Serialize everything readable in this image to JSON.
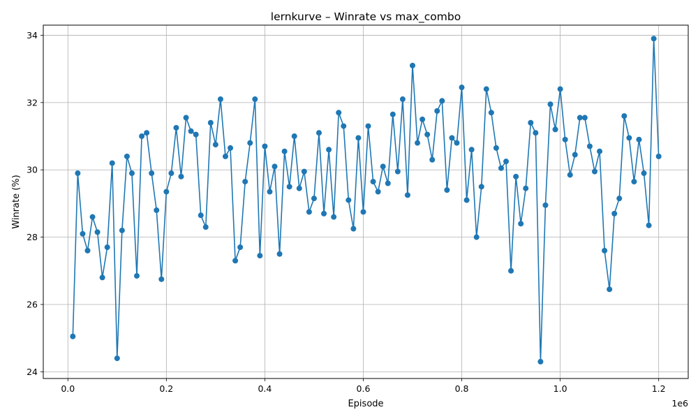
{
  "chart_data": {
    "type": "line",
    "title": "lernkurve – Winrate vs max_combo",
    "xlabel": "Episode",
    "ylabel": "Winrate (%)",
    "x_offset_label": "1e6",
    "xlim": [
      -0.05,
      1.26
    ],
    "ylim": [
      23.8,
      34.3
    ],
    "x_ticks": [
      0,
      0.2,
      0.4,
      0.6,
      0.8,
      1.0,
      1.2
    ],
    "x_tick_labels": [
      "0.0",
      "0.2",
      "0.4",
      "0.6",
      "0.8",
      "1.0",
      "1.2"
    ],
    "y_ticks": [
      24,
      26,
      28,
      30,
      32,
      34
    ],
    "y_tick_labels": [
      "24",
      "26",
      "28",
      "30",
      "32",
      "34"
    ],
    "grid": true,
    "color": "#1f77b4",
    "marker": "circle",
    "series": [
      {
        "x": [
          0.01,
          0.02,
          0.03,
          0.04,
          0.05,
          0.06,
          0.07,
          0.08,
          0.09,
          0.1,
          0.11,
          0.12,
          0.13,
          0.14,
          0.15,
          0.16,
          0.17,
          0.18,
          0.19,
          0.2,
          0.21,
          0.22,
          0.23,
          0.24,
          0.25,
          0.26,
          0.27,
          0.28,
          0.29,
          0.3,
          0.31,
          0.32,
          0.33,
          0.34,
          0.35,
          0.36,
          0.37,
          0.38,
          0.39,
          0.4,
          0.41,
          0.42,
          0.43,
          0.44,
          0.45,
          0.46,
          0.47,
          0.48,
          0.49,
          0.5,
          0.51,
          0.52,
          0.53,
          0.54,
          0.55,
          0.56,
          0.57,
          0.58,
          0.59,
          0.6,
          0.61,
          0.62,
          0.63,
          0.64,
          0.65,
          0.66,
          0.67,
          0.68,
          0.69,
          0.7,
          0.71,
          0.72,
          0.73,
          0.74,
          0.75,
          0.76,
          0.77,
          0.78,
          0.79,
          0.8,
          0.81,
          0.82,
          0.83,
          0.84,
          0.85,
          0.86,
          0.87,
          0.88,
          0.89,
          0.9,
          0.91,
          0.92,
          0.93,
          0.94,
          0.95,
          0.96,
          0.97,
          0.98,
          0.99,
          1.0,
          1.01,
          1.02,
          1.03,
          1.04,
          1.05,
          1.06,
          1.07,
          1.08,
          1.09,
          1.1,
          1.11,
          1.12,
          1.13,
          1.14,
          1.15,
          1.16,
          1.17,
          1.18,
          1.19,
          1.2
        ],
        "y": [
          25.05,
          29.9,
          28.1,
          27.6,
          28.6,
          28.15,
          26.8,
          27.7,
          30.2,
          24.4,
          28.2,
          30.4,
          29.9,
          26.85,
          31.0,
          31.1,
          29.9,
          28.8,
          26.75,
          29.35,
          29.9,
          31.25,
          29.8,
          31.55,
          31.15,
          31.05,
          28.65,
          28.3,
          31.4,
          30.75,
          32.1,
          30.4,
          30.65,
          27.3,
          27.7,
          29.65,
          30.8,
          32.1,
          27.45,
          30.7,
          29.35,
          30.1,
          27.5,
          30.55,
          29.5,
          31.0,
          29.45,
          29.95,
          28.75,
          29.15,
          31.1,
          28.7,
          30.6,
          28.6,
          31.7,
          31.3,
          29.1,
          28.25,
          30.95,
          28.75,
          31.3,
          29.65,
          29.35,
          30.1,
          29.6,
          31.65,
          29.95,
          32.1,
          29.25,
          33.1,
          30.8,
          31.5,
          31.05,
          30.3,
          31.75,
          32.05,
          29.4,
          30.95,
          30.8,
          32.45,
          29.1,
          30.6,
          28.0,
          29.5,
          32.4,
          31.7,
          30.65,
          30.05,
          30.25,
          27.0,
          29.8,
          28.4,
          29.45,
          31.4,
          31.1,
          24.3,
          28.95,
          31.95,
          31.2,
          32.4,
          30.9,
          29.85,
          30.45,
          31.55,
          31.55,
          30.7,
          29.95,
          30.55,
          27.6,
          26.45,
          28.7,
          29.15,
          31.6,
          30.95,
          29.65,
          30.9,
          29.9,
          28.35,
          33.9,
          30.4
        ]
      }
    ]
  }
}
